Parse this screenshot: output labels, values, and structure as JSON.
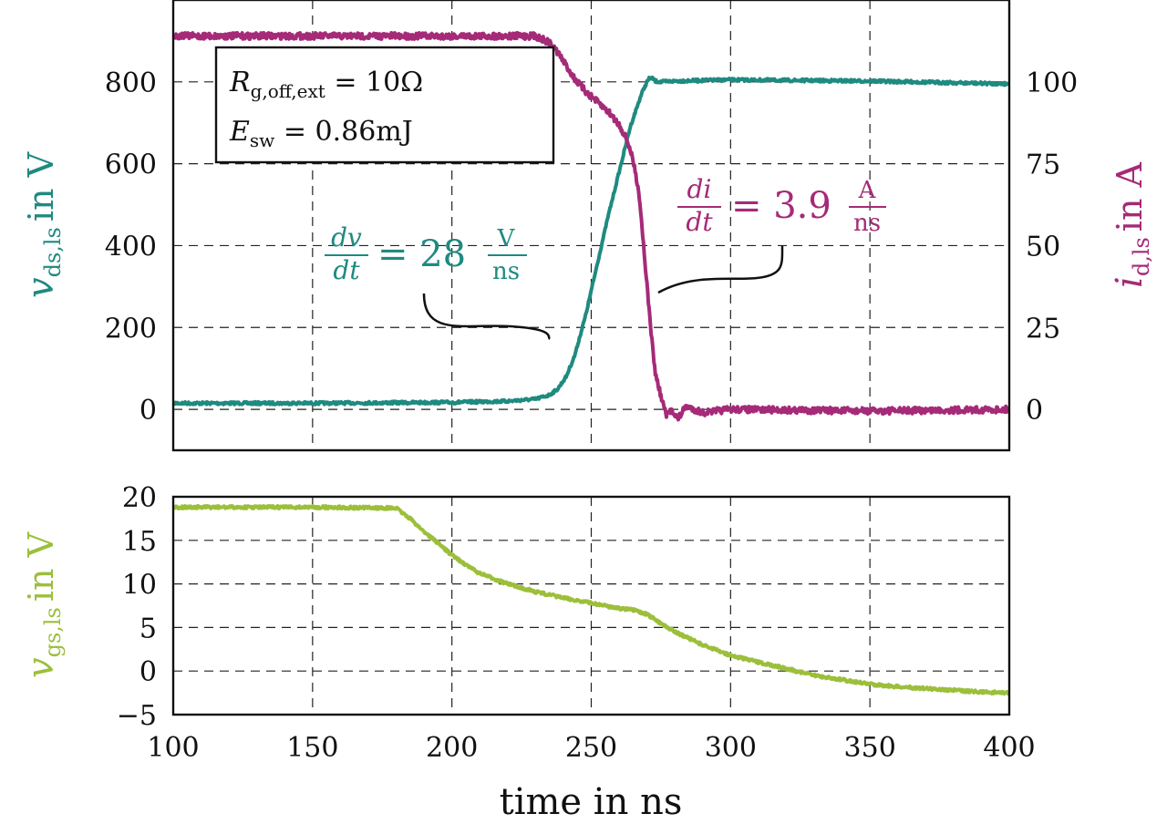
{
  "chart_data": [
    {
      "type": "line",
      "title": "",
      "x_label": "time in ns",
      "xlim": [
        100,
        400
      ],
      "x_ticks": [
        "100",
        "150",
        "200",
        "250",
        "300",
        "350",
        "400"
      ],
      "y_left": {
        "label_var": "v",
        "label_sub": "ds,ls",
        "label_unit": "in V",
        "ylim": [
          -100,
          1000
        ],
        "ticks": [
          "0",
          "200",
          "400",
          "600",
          "800"
        ],
        "tick_values": [
          0,
          200,
          400,
          600,
          800
        ],
        "color": "#1f8a80"
      },
      "y_right": {
        "label_var": "i",
        "label_sub": "d,ls",
        "label_unit": "in A",
        "ylim": [
          -12.5,
          125
        ],
        "ticks": [
          "0",
          "25",
          "50",
          "75",
          "100"
        ],
        "tick_values": [
          0,
          25,
          50,
          75,
          100
        ],
        "color": "#a52a78"
      },
      "series": [
        {
          "name": "v_ds,ls",
          "axis": "left",
          "color": "#1f8a80",
          "x": [
            100,
            150,
            200,
            220,
            230,
            235,
            238,
            241,
            244,
            248,
            252,
            256,
            260,
            264,
            268,
            270,
            271,
            272,
            273,
            275,
            280,
            300,
            350,
            400
          ],
          "y": [
            15,
            15,
            17,
            20,
            25,
            35,
            50,
            80,
            130,
            230,
            350,
            470,
            580,
            690,
            770,
            800,
            810,
            808,
            802,
            800,
            802,
            805,
            802,
            795
          ]
        },
        {
          "name": "i_d,ls",
          "axis": "right",
          "color": "#a52a78",
          "x": [
            100,
            150,
            200,
            230,
            235,
            238,
            241,
            244,
            248,
            252,
            256,
            260,
            263,
            265,
            267,
            268,
            269,
            270,
            271,
            272,
            273,
            275,
            277,
            279,
            281,
            284,
            287,
            290,
            300,
            350,
            400
          ],
          "y": [
            114,
            114,
            114,
            114,
            112,
            109,
            105,
            101,
            97,
            94,
            91,
            87,
            82,
            76,
            67,
            58,
            48,
            38,
            28,
            19,
            11,
            4,
            -2,
            0,
            -3,
            1,
            0,
            -1,
            0,
            -0.5,
            0
          ]
        }
      ],
      "annotation_box": {
        "line1": {
          "var": "R",
          "sub": "g,off,ext",
          "rest": " = 10Ω"
        },
        "line2": {
          "var": "E",
          "sub": "sw",
          "rest": " = 0.86mJ"
        }
      },
      "annotations": [
        {
          "series": "v_ds,ls",
          "color": "#1f8a80",
          "num": "dv",
          "den": "dt",
          "eq": "= 28",
          "unit_num": "V",
          "unit_den": "ns",
          "points_to": {
            "x": 238,
            "y": 170
          }
        },
        {
          "series": "i_d,ls",
          "color": "#a52a78",
          "num": "di",
          "den": "dt",
          "eq": "= 3.9",
          "unit_num": "A",
          "unit_den": "ns",
          "points_to": {
            "x": 272,
            "y": 290
          }
        }
      ]
    },
    {
      "type": "line",
      "title": "",
      "xlim": [
        100,
        400
      ],
      "y_left": {
        "label_var": "v",
        "label_sub": "gs,ls",
        "label_unit": "in V",
        "ylim": [
          -5,
          20
        ],
        "ticks": [
          "−5",
          "0",
          "5",
          "10",
          "15",
          "20"
        ],
        "tick_values": [
          -5,
          0,
          5,
          10,
          15,
          20
        ],
        "color": "#9cbf3b"
      },
      "series": [
        {
          "name": "v_gs,ls",
          "axis": "left",
          "color": "#9cbf3b",
          "x": [
            100,
            150,
            180,
            185,
            190,
            195,
            200,
            205,
            210,
            220,
            230,
            240,
            250,
            260,
            265,
            270,
            275,
            280,
            290,
            300,
            310,
            320,
            330,
            340,
            350,
            360,
            370,
            380,
            390,
            400
          ],
          "y": [
            18.8,
            18.8,
            18.7,
            17.5,
            16,
            14.7,
            13.3,
            12.2,
            11.2,
            10,
            9.1,
            8.4,
            7.8,
            7.2,
            7,
            6.5,
            5.5,
            4.5,
            3,
            1.8,
            1,
            0.3,
            -0.5,
            -1,
            -1.5,
            -1.8,
            -2,
            -2.2,
            -2.4,
            -2.5
          ]
        }
      ]
    }
  ]
}
